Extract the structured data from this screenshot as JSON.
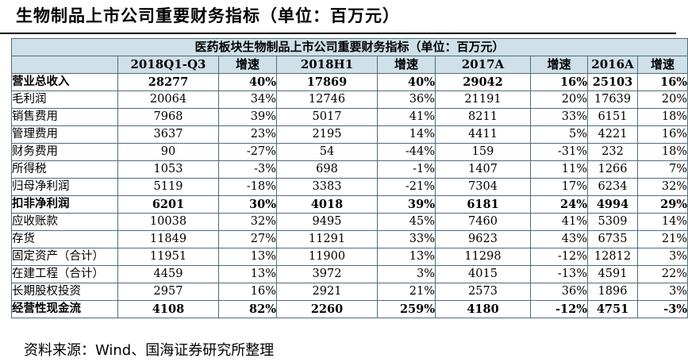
{
  "page": {
    "title": "生物制品上市公司重要财务指标（单位：百万元）",
    "source": "资料来源：Wind、国海证券研究所整理"
  },
  "table": {
    "caption": "医药板块生物制品上市公司重要财务指标（单位：百万元）",
    "headers": [
      "",
      "2018Q1-Q3",
      "增速",
      "2018H1",
      "增速",
      "2017A",
      "增速",
      "2016A",
      "增速"
    ],
    "rows": [
      {
        "label": "营业总收入",
        "bold": true,
        "cells": [
          "28277",
          "40%",
          "17869",
          "40%",
          "29042",
          "16%",
          "25103",
          "16%"
        ]
      },
      {
        "label": "毛利润",
        "bold": false,
        "cells": [
          "20064",
          "34%",
          "12746",
          "36%",
          "21191",
          "20%",
          "17639",
          "20%"
        ]
      },
      {
        "label": "销售费用",
        "bold": false,
        "cells": [
          "7968",
          "39%",
          "5017",
          "41%",
          "8211",
          "33%",
          "6151",
          "18%"
        ]
      },
      {
        "label": "管理费用",
        "bold": false,
        "cells": [
          "3637",
          "23%",
          "2195",
          "14%",
          "4411",
          "5%",
          "4221",
          "16%"
        ]
      },
      {
        "label": "财务费用",
        "bold": false,
        "cells": [
          "90",
          "-27%",
          "54",
          "-44%",
          "159",
          "-31%",
          "232",
          "18%"
        ]
      },
      {
        "label": "所得税",
        "bold": false,
        "cells": [
          "1053",
          "-3%",
          "698",
          "-1%",
          "1407",
          "11%",
          "1266",
          "7%"
        ]
      },
      {
        "label": "归母净利润",
        "bold": false,
        "cells": [
          "5119",
          "-18%",
          "3383",
          "-21%",
          "7304",
          "17%",
          "6234",
          "32%"
        ]
      },
      {
        "label": "扣非净利润",
        "bold": true,
        "cells": [
          "6201",
          "30%",
          "4018",
          "39%",
          "6181",
          "24%",
          "4994",
          "29%"
        ]
      },
      {
        "label": "应收账款",
        "bold": false,
        "cells": [
          "10038",
          "32%",
          "9495",
          "45%",
          "7460",
          "41%",
          "5309",
          "14%"
        ]
      },
      {
        "label": "存货",
        "bold": false,
        "cells": [
          "11849",
          "27%",
          "11291",
          "33%",
          "9623",
          "43%",
          "6735",
          "21%"
        ]
      },
      {
        "label": "固定资产（合计）",
        "bold": false,
        "cells": [
          "11951",
          "13%",
          "11900",
          "13%",
          "11298",
          "-12%",
          "12812",
          "3%"
        ]
      },
      {
        "label": "在建工程（合计）",
        "bold": false,
        "cells": [
          "4459",
          "13%",
          "3972",
          "3%",
          "4015",
          "-13%",
          "4591",
          "22%"
        ]
      },
      {
        "label": "长期股权投资",
        "bold": false,
        "cells": [
          "2957",
          "16%",
          "2921",
          "21%",
          "2573",
          "36%",
          "1896",
          "3%"
        ]
      },
      {
        "label": "经营性现金流",
        "bold": true,
        "cells": [
          "4108",
          "82%",
          "2260",
          "259%",
          "4180",
          "-12%",
          "4751",
          "-3%"
        ]
      }
    ]
  }
}
